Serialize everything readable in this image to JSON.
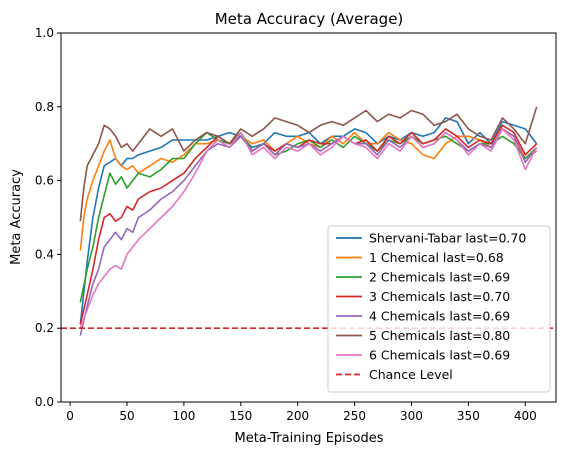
{
  "chart_data": {
    "type": "line",
    "title": "Meta Accuracy (Average)",
    "xlabel": "Meta-Training Episodes",
    "ylabel": "Meta Accuracy",
    "xlim": [
      -8,
      427
    ],
    "ylim": [
      0.0,
      1.0
    ],
    "xticks": [
      0,
      50,
      100,
      150,
      200,
      250,
      300,
      350,
      400
    ],
    "xtick_labels": [
      "0",
      "50",
      "100",
      "150",
      "200",
      "250",
      "300",
      "350",
      "400"
    ],
    "yticks": [
      0.0,
      0.2,
      0.4,
      0.6,
      0.8,
      1.0
    ],
    "ytick_labels": [
      "0.0",
      "0.2",
      "0.4",
      "0.6",
      "0.8",
      "1.0"
    ],
    "grid": false,
    "legend_position": "lower-right",
    "reference_line": {
      "label": "Chance Level",
      "y": 0.2,
      "color": "#d62728",
      "style": "dashed"
    },
    "series": [
      {
        "name": "Shervani-Tabar last=0.70",
        "color": "#1f77b4",
        "x": [
          9,
          15,
          20,
          25,
          30,
          35,
          40,
          45,
          50,
          55,
          60,
          70,
          80,
          90,
          100,
          110,
          120,
          130,
          140,
          150,
          160,
          170,
          180,
          190,
          200,
          210,
          220,
          230,
          240,
          250,
          260,
          270,
          280,
          290,
          300,
          310,
          320,
          330,
          340,
          350,
          360,
          370,
          380,
          390,
          400,
          410
        ],
        "y": [
          0.21,
          0.38,
          0.5,
          0.58,
          0.64,
          0.65,
          0.66,
          0.64,
          0.66,
          0.66,
          0.67,
          0.68,
          0.69,
          0.71,
          0.71,
          0.71,
          0.71,
          0.72,
          0.73,
          0.72,
          0.69,
          0.7,
          0.73,
          0.72,
          0.72,
          0.73,
          0.7,
          0.72,
          0.72,
          0.74,
          0.73,
          0.7,
          0.72,
          0.71,
          0.73,
          0.72,
          0.73,
          0.77,
          0.76,
          0.7,
          0.73,
          0.7,
          0.76,
          0.75,
          0.74,
          0.7
        ]
      },
      {
        "name": "1 Chemical last=0.68",
        "color": "#ff7f0e",
        "x": [
          9,
          12,
          15,
          20,
          25,
          30,
          35,
          40,
          45,
          50,
          55,
          60,
          70,
          80,
          90,
          100,
          110,
          120,
          130,
          140,
          150,
          160,
          170,
          180,
          190,
          200,
          210,
          220,
          230,
          240,
          250,
          260,
          270,
          280,
          290,
          300,
          310,
          320,
          330,
          340,
          350,
          360,
          370,
          380,
          390,
          400,
          410
        ],
        "y": [
          0.41,
          0.5,
          0.55,
          0.6,
          0.64,
          0.68,
          0.71,
          0.66,
          0.64,
          0.63,
          0.64,
          0.62,
          0.64,
          0.66,
          0.65,
          0.67,
          0.7,
          0.7,
          0.71,
          0.69,
          0.72,
          0.7,
          0.71,
          0.68,
          0.7,
          0.72,
          0.7,
          0.69,
          0.72,
          0.7,
          0.73,
          0.7,
          0.7,
          0.73,
          0.71,
          0.7,
          0.67,
          0.66,
          0.7,
          0.72,
          0.72,
          0.71,
          0.69,
          0.74,
          0.72,
          0.66,
          0.68
        ]
      },
      {
        "name": "2 Chemicals last=0.69",
        "color": "#2ca02c",
        "x": [
          9,
          15,
          20,
          25,
          30,
          35,
          40,
          45,
          50,
          55,
          60,
          70,
          80,
          90,
          100,
          110,
          120,
          130,
          140,
          150,
          160,
          170,
          180,
          190,
          200,
          210,
          220,
          230,
          240,
          250,
          260,
          270,
          280,
          290,
          300,
          310,
          320,
          330,
          340,
          350,
          360,
          370,
          380,
          390,
          400,
          410
        ],
        "y": [
          0.27,
          0.36,
          0.42,
          0.5,
          0.56,
          0.62,
          0.59,
          0.61,
          0.58,
          0.6,
          0.62,
          0.61,
          0.63,
          0.66,
          0.66,
          0.7,
          0.73,
          0.71,
          0.7,
          0.73,
          0.68,
          0.7,
          0.67,
          0.68,
          0.7,
          0.71,
          0.69,
          0.71,
          0.69,
          0.72,
          0.7,
          0.68,
          0.71,
          0.7,
          0.72,
          0.7,
          0.71,
          0.72,
          0.7,
          0.68,
          0.7,
          0.7,
          0.72,
          0.7,
          0.66,
          0.69
        ]
      },
      {
        "name": "3 Chemicals last=0.70",
        "color": "#d62728",
        "x": [
          9,
          15,
          20,
          25,
          30,
          35,
          40,
          45,
          50,
          55,
          60,
          70,
          80,
          90,
          100,
          110,
          120,
          130,
          140,
          150,
          160,
          170,
          180,
          190,
          200,
          210,
          220,
          230,
          240,
          250,
          260,
          270,
          280,
          290,
          300,
          310,
          320,
          330,
          340,
          350,
          360,
          370,
          380,
          390,
          400,
          410
        ],
        "y": [
          0.21,
          0.29,
          0.36,
          0.44,
          0.5,
          0.51,
          0.49,
          0.5,
          0.53,
          0.52,
          0.55,
          0.57,
          0.58,
          0.6,
          0.62,
          0.66,
          0.69,
          0.72,
          0.7,
          0.72,
          0.68,
          0.7,
          0.68,
          0.7,
          0.69,
          0.71,
          0.7,
          0.7,
          0.72,
          0.7,
          0.71,
          0.68,
          0.72,
          0.7,
          0.73,
          0.7,
          0.71,
          0.74,
          0.72,
          0.69,
          0.71,
          0.7,
          0.75,
          0.73,
          0.67,
          0.7
        ]
      },
      {
        "name": "4 Chemicals last=0.69",
        "color": "#9467bd",
        "x": [
          9,
          15,
          20,
          25,
          30,
          35,
          40,
          45,
          50,
          55,
          60,
          70,
          80,
          90,
          100,
          110,
          120,
          130,
          140,
          150,
          160,
          170,
          180,
          190,
          200,
          210,
          220,
          230,
          240,
          250,
          260,
          270,
          280,
          290,
          300,
          310,
          320,
          330,
          340,
          350,
          360,
          370,
          380,
          390,
          400,
          410
        ],
        "y": [
          0.18,
          0.26,
          0.32,
          0.36,
          0.42,
          0.44,
          0.46,
          0.44,
          0.47,
          0.46,
          0.5,
          0.52,
          0.55,
          0.57,
          0.6,
          0.64,
          0.68,
          0.7,
          0.69,
          0.72,
          0.68,
          0.7,
          0.67,
          0.7,
          0.69,
          0.7,
          0.68,
          0.7,
          0.72,
          0.7,
          0.7,
          0.67,
          0.71,
          0.69,
          0.72,
          0.69,
          0.7,
          0.73,
          0.71,
          0.68,
          0.7,
          0.69,
          0.74,
          0.72,
          0.65,
          0.69
        ]
      },
      {
        "name": "5 Chemicals last=0.80",
        "color": "#8c564b",
        "x": [
          9,
          12,
          15,
          20,
          25,
          30,
          35,
          40,
          45,
          50,
          55,
          60,
          70,
          80,
          90,
          100,
          110,
          120,
          130,
          140,
          150,
          160,
          170,
          180,
          190,
          200,
          210,
          220,
          230,
          240,
          250,
          260,
          270,
          280,
          290,
          300,
          310,
          320,
          330,
          340,
          350,
          360,
          370,
          380,
          390,
          400,
          408,
          410
        ],
        "y": [
          0.49,
          0.58,
          0.64,
          0.67,
          0.7,
          0.75,
          0.74,
          0.72,
          0.69,
          0.7,
          0.68,
          0.7,
          0.74,
          0.72,
          0.74,
          0.68,
          0.71,
          0.73,
          0.72,
          0.7,
          0.74,
          0.72,
          0.74,
          0.77,
          0.76,
          0.75,
          0.73,
          0.75,
          0.76,
          0.75,
          0.77,
          0.79,
          0.76,
          0.78,
          0.77,
          0.79,
          0.78,
          0.75,
          0.76,
          0.78,
          0.74,
          0.72,
          0.71,
          0.77,
          0.74,
          0.7,
          0.78,
          0.8
        ]
      },
      {
        "name": "6 Chemicals last=0.69",
        "color": "#e377c2",
        "x": [
          9,
          15,
          20,
          25,
          30,
          35,
          40,
          45,
          50,
          55,
          60,
          70,
          80,
          90,
          100,
          110,
          120,
          130,
          140,
          150,
          160,
          170,
          180,
          190,
          200,
          210,
          220,
          230,
          240,
          250,
          260,
          270,
          280,
          290,
          300,
          310,
          320,
          330,
          340,
          350,
          360,
          370,
          380,
          390,
          400,
          410
        ],
        "y": [
          0.2,
          0.25,
          0.29,
          0.32,
          0.34,
          0.36,
          0.37,
          0.36,
          0.4,
          0.42,
          0.44,
          0.47,
          0.5,
          0.53,
          0.57,
          0.62,
          0.68,
          0.71,
          0.69,
          0.73,
          0.67,
          0.69,
          0.66,
          0.69,
          0.68,
          0.7,
          0.67,
          0.69,
          0.72,
          0.7,
          0.69,
          0.66,
          0.7,
          0.68,
          0.72,
          0.69,
          0.7,
          0.73,
          0.71,
          0.67,
          0.7,
          0.68,
          0.74,
          0.71,
          0.63,
          0.69
        ]
      }
    ]
  }
}
